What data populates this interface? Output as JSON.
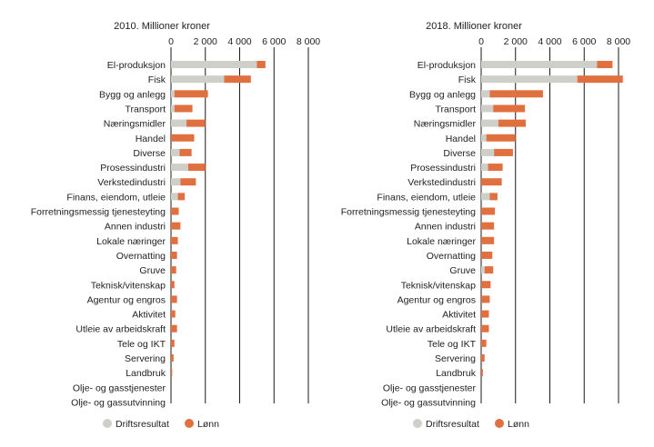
{
  "legend": {
    "items": [
      {
        "label": "Driftsresultat",
        "color": "#cfcfc9"
      },
      {
        "label": "Lønn",
        "color": "#e07040"
      }
    ]
  },
  "chart_data": [
    {
      "type": "bar",
      "orientation": "horizontal",
      "stacked": true,
      "title": "2010. Millioner kroner",
      "xlim": [
        0,
        8000
      ],
      "xticks": [
        0,
        2000,
        4000,
        6000,
        8000
      ],
      "xtick_labels": [
        "0",
        "2 000",
        "4 000",
        "6 000",
        "8 000"
      ],
      "categories": [
        "El-produksjon",
        "Fisk",
        "Bygg og anlegg",
        "Transport",
        "Næringsmidler",
        "Handel",
        "Diverse",
        "Prosessindustri",
        "Verkstedindustri",
        "Finans, eiendom, utleie",
        "Forretningsmessig tjenesteyting",
        "Annen industri",
        "Lokale næringer",
        "Overnatting",
        "Gruve",
        "Teknisk/vitenskap",
        "Agentur og engros",
        "Aktivitet",
        "Utleie av arbeidskraft",
        "Tele og IKT",
        "Servering",
        "Landbruk",
        "Olje- og gasstjenester",
        "Olje- og gassutvinning"
      ],
      "series": [
        {
          "name": "Driftsresultat",
          "values": [
            5000,
            3100,
            200,
            200,
            900,
            0,
            500,
            1000,
            550,
            400,
            0,
            0,
            0,
            0,
            0,
            0,
            0,
            0,
            0,
            0,
            0,
            0,
            0,
            0
          ]
        },
        {
          "name": "Lønn",
          "values": [
            500,
            1550,
            1950,
            1050,
            1100,
            1350,
            700,
            1000,
            900,
            400,
            450,
            550,
            400,
            350,
            300,
            200,
            350,
            250,
            350,
            200,
            150,
            70,
            0,
            0
          ]
        }
      ]
    },
    {
      "type": "bar",
      "orientation": "horizontal",
      "stacked": true,
      "title": "2018. Millioner kroner",
      "xlim": [
        0,
        8000
      ],
      "xticks": [
        0,
        2000,
        4000,
        6000,
        8000
      ],
      "xtick_labels": [
        "0",
        "2 000",
        "4 000",
        "6 000",
        "8 000"
      ],
      "categories": [
        "El-produksjon",
        "Fisk",
        "Bygg og anlegg",
        "Transport",
        "Næringsmidler",
        "Handel",
        "Diverse",
        "Prosessindustri",
        "Verkstedindustri",
        "Finans, eiendom, utleie",
        "Forretningsmessig tjenesteyting",
        "Annen industri",
        "Lokale næringer",
        "Overnatting",
        "Gruve",
        "Teknisk/vitenskap",
        "Agentur og engros",
        "Aktivitet",
        "Utleie av arbeidskraft",
        "Tele og IKT",
        "Servering",
        "Landbruk",
        "Olje- og gasstjenester",
        "Olje- og gassutvinning"
      ],
      "series": [
        {
          "name": "Driftsresultat",
          "values": [
            6750,
            5600,
            500,
            700,
            1000,
            300,
            750,
            400,
            0,
            500,
            0,
            0,
            0,
            0,
            200,
            0,
            0,
            0,
            0,
            0,
            0,
            0,
            0,
            0
          ]
        },
        {
          "name": "Lønn",
          "values": [
            900,
            2650,
            3100,
            1850,
            1600,
            1700,
            1100,
            850,
            1200,
            450,
            800,
            750,
            750,
            650,
            500,
            550,
            500,
            450,
            450,
            300,
            200,
            100,
            0,
            0
          ]
        }
      ]
    }
  ]
}
